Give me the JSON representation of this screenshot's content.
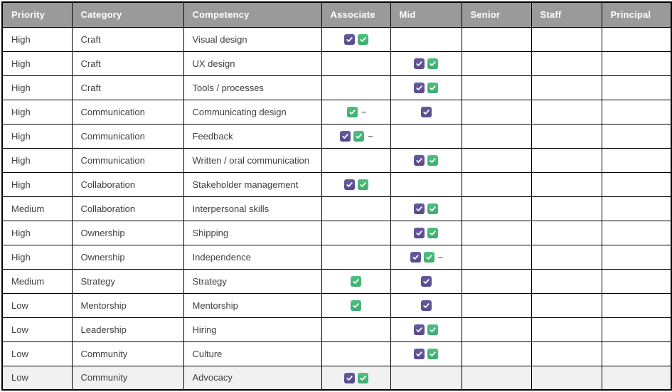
{
  "colors": {
    "purple_check": "#675A9E",
    "green_check": "#4EC081",
    "header_background": "#9A9A9A",
    "header_text": "#FFFFFF",
    "grid_border": "#000000",
    "body_text": "#3F3F3F",
    "highlighted_row_background": "#F1F1F1"
  },
  "icons": {
    "purple_check_name": "purple-check-icon",
    "green_check_name": "green-check-icon",
    "tilde_glyph": "~"
  },
  "table": {
    "columns": [
      {
        "key": "priority",
        "label": "Priority"
      },
      {
        "key": "category",
        "label": "Category"
      },
      {
        "key": "competency",
        "label": "Competency"
      },
      {
        "key": "associate",
        "label": "Associate"
      },
      {
        "key": "mid",
        "label": "Mid"
      },
      {
        "key": "senior",
        "label": "Senior"
      },
      {
        "key": "staff",
        "label": "Staff"
      },
      {
        "key": "principal",
        "label": "Principal"
      }
    ],
    "highlighted_row_index": 14,
    "rows": [
      {
        "priority": "High",
        "category": "Craft",
        "competency": "Visual design",
        "associate": [
          "purple-check",
          "green-check"
        ],
        "mid": [],
        "senior": [],
        "staff": [],
        "principal": []
      },
      {
        "priority": "High",
        "category": "Craft",
        "competency": "UX design",
        "associate": [],
        "mid": [
          "purple-check",
          "green-check"
        ],
        "senior": [],
        "staff": [],
        "principal": []
      },
      {
        "priority": "High",
        "category": "Craft",
        "competency": "Tools / processes",
        "associate": [],
        "mid": [
          "purple-check",
          "green-check"
        ],
        "senior": [],
        "staff": [],
        "principal": []
      },
      {
        "priority": "High",
        "category": "Communication",
        "competency": "Communicating design",
        "associate": [
          "green-check",
          "tilde"
        ],
        "mid": [
          "purple-check"
        ],
        "senior": [],
        "staff": [],
        "principal": []
      },
      {
        "priority": "High",
        "category": "Communication",
        "competency": "Feedback",
        "associate": [
          "purple-check",
          "green-check",
          "tilde"
        ],
        "mid": [],
        "senior": [],
        "staff": [],
        "principal": []
      },
      {
        "priority": "High",
        "category": "Communication",
        "competency": "Written / oral communication",
        "associate": [],
        "mid": [
          "purple-check",
          "green-check"
        ],
        "senior": [],
        "staff": [],
        "principal": []
      },
      {
        "priority": "High",
        "category": "Collaboration",
        "competency": "Stakeholder management",
        "associate": [
          "purple-check",
          "green-check"
        ],
        "mid": [],
        "senior": [],
        "staff": [],
        "principal": []
      },
      {
        "priority": "Medium",
        "category": "Collaboration",
        "competency": "Interpersonal skills",
        "associate": [],
        "mid": [
          "purple-check",
          "green-check"
        ],
        "senior": [],
        "staff": [],
        "principal": []
      },
      {
        "priority": "High",
        "category": "Ownership",
        "competency": "Shipping",
        "associate": [],
        "mid": [
          "purple-check",
          "green-check"
        ],
        "senior": [],
        "staff": [],
        "principal": []
      },
      {
        "priority": "High",
        "category": "Ownership",
        "competency": "Independence",
        "associate": [],
        "mid": [
          "purple-check",
          "green-check",
          "tilde"
        ],
        "senior": [],
        "staff": [],
        "principal": []
      },
      {
        "priority": "Medium",
        "category": "Strategy",
        "competency": "Strategy",
        "associate": [
          "green-check"
        ],
        "mid": [
          "purple-check"
        ],
        "senior": [],
        "staff": [],
        "principal": []
      },
      {
        "priority": "Low",
        "category": "Mentorship",
        "competency": "Mentorship",
        "associate": [
          "green-check"
        ],
        "mid": [
          "purple-check"
        ],
        "senior": [],
        "staff": [],
        "principal": []
      },
      {
        "priority": "Low",
        "category": "Leadership",
        "competency": "Hiring",
        "associate": [],
        "mid": [
          "purple-check",
          "green-check"
        ],
        "senior": [],
        "staff": [],
        "principal": []
      },
      {
        "priority": "Low",
        "category": "Community",
        "competency": "Culture",
        "associate": [],
        "mid": [
          "purple-check",
          "green-check"
        ],
        "senior": [],
        "staff": [],
        "principal": []
      },
      {
        "priority": "Low",
        "category": "Community",
        "competency": "Advocacy",
        "associate": [
          "purple-check",
          "green-check"
        ],
        "mid": [],
        "senior": [],
        "staff": [],
        "principal": []
      }
    ]
  }
}
